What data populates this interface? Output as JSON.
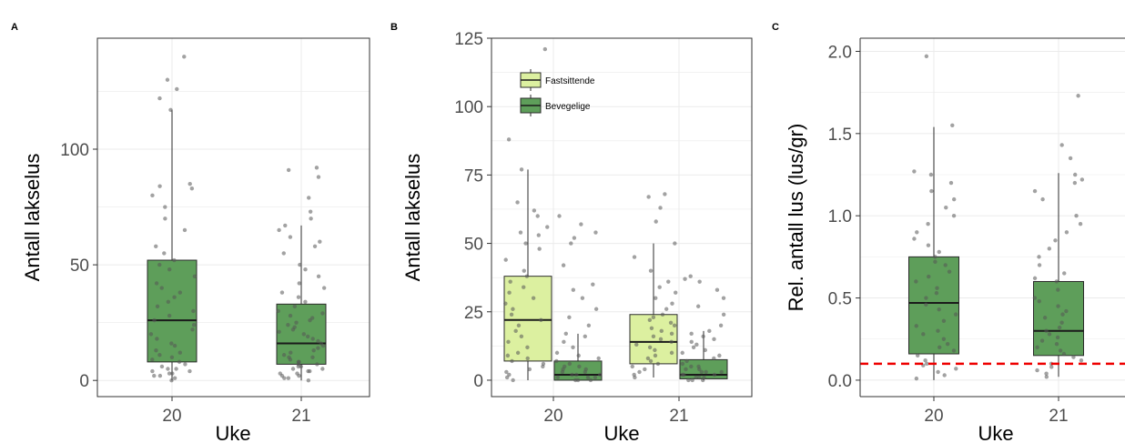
{
  "colors": {
    "fastsittende": "#dcf0a0",
    "bevegelige": "#5e9e5a",
    "box_stroke": "#2b2b2b",
    "median": "#1a1a1a",
    "grid": "#ebebeb",
    "points": "#555555",
    "threshold": "#ee0000"
  },
  "chart_data": [
    {
      "type": "box",
      "panel": "A",
      "xlabel": "Uke",
      "ylabel": "Antall lakselus",
      "ylim": [
        -7,
        148
      ],
      "yticks": [
        0,
        50,
        100
      ],
      "categories": [
        "20",
        "21"
      ],
      "series": [
        {
          "boxes": [
            {
              "category": "20",
              "q1": 8,
              "median": 26,
              "q3": 52,
              "whisker_low": 0,
              "whisker_high": 117,
              "points": [
                0,
                1,
                2,
                2,
                3,
                3,
                4,
                4,
                5,
                5,
                6,
                7,
                8,
                9,
                10,
                11,
                12,
                13,
                15,
                16,
                18,
                20,
                22,
                24,
                26,
                28,
                30,
                32,
                34,
                36,
                38,
                40,
                42,
                45,
                48,
                50,
                52,
                55,
                58,
                65,
                70,
                75,
                80,
                83,
                84,
                85,
                117,
                122,
                126,
                130,
                140
              ]
            },
            {
              "category": "21",
              "q1": 7,
              "median": 16,
              "q3": 33,
              "whisker_low": 0,
              "whisker_high": 67,
              "points": [
                0,
                1,
                1,
                2,
                2,
                3,
                3,
                4,
                4,
                5,
                5,
                6,
                6,
                7,
                7,
                8,
                8,
                9,
                10,
                10,
                11,
                12,
                13,
                14,
                15,
                16,
                17,
                18,
                19,
                20,
                21,
                22,
                23,
                24,
                25,
                26,
                27,
                28,
                29,
                30,
                32,
                34,
                36,
                38,
                40,
                42,
                45,
                48,
                50,
                55,
                58,
                60,
                62,
                65,
                67,
                70,
                73,
                79,
                88,
                91,
                92
              ]
            }
          ]
        }
      ]
    },
    {
      "type": "box",
      "panel": "B",
      "xlabel": "Uke",
      "ylabel": "Antall lakselus",
      "ylim": [
        -6,
        125
      ],
      "yticks": [
        0,
        25,
        50,
        75,
        100,
        125
      ],
      "categories": [
        "20",
        "21"
      ],
      "legend": [
        "Fastsittende",
        "Bevegelige"
      ],
      "series": [
        {
          "name": "Fastsittende",
          "boxes": [
            {
              "category": "20",
              "q1": 7,
              "median": 22,
              "q3": 38,
              "whisker_low": 0,
              "whisker_high": 77,
              "points": [
                0,
                1,
                2,
                3,
                4,
                5,
                6,
                7,
                8,
                9,
                10,
                12,
                14,
                16,
                18,
                20,
                22,
                24,
                26,
                28,
                30,
                32,
                34,
                36,
                38,
                40,
                44,
                48,
                50,
                53,
                54,
                56,
                60,
                62,
                65,
                77,
                88,
                121
              ]
            },
            {
              "category": "21",
              "q1": 6,
              "median": 14,
              "q3": 24,
              "whisker_low": 1,
              "whisker_high": 50,
              "points": [
                1,
                2,
                3,
                4,
                5,
                6,
                7,
                8,
                9,
                10,
                11,
                12,
                13,
                14,
                15,
                16,
                17,
                18,
                19,
                20,
                21,
                22,
                23,
                24,
                26,
                28,
                30,
                32,
                34,
                36,
                40,
                45,
                50,
                58,
                63,
                67,
                68
              ]
            }
          ]
        },
        {
          "name": "Bevegelige",
          "boxes": [
            {
              "category": "20",
              "q1": 0,
              "median": 2,
              "q3": 7,
              "whisker_low": 0,
              "whisker_high": 17,
              "points": [
                0,
                0,
                0,
                1,
                1,
                1,
                2,
                2,
                2,
                3,
                3,
                4,
                4,
                5,
                5,
                6,
                7,
                8,
                9,
                10,
                12,
                14,
                16,
                17,
                20,
                23,
                26,
                30,
                33,
                35,
                42,
                50,
                52,
                54,
                57,
                60
              ]
            },
            {
              "category": "21",
              "q1": 0.5,
              "median": 2,
              "q3": 7.5,
              "whisker_low": 0,
              "whisker_high": 18,
              "points": [
                0,
                0,
                0,
                1,
                1,
                1,
                2,
                2,
                2,
                3,
                3,
                3,
                4,
                4,
                5,
                5,
                6,
                7,
                8,
                9,
                10,
                11,
                12,
                13,
                14,
                15,
                16,
                17,
                18,
                20,
                24,
                27,
                30,
                33,
                36,
                37,
                38
              ]
            }
          ]
        }
      ]
    },
    {
      "type": "box",
      "panel": "C",
      "xlabel": "Uke",
      "ylabel": "Rel. antall lus (lus/gr)",
      "ylim": [
        -0.1,
        2.08
      ],
      "yticks": [
        0.0,
        0.5,
        1.0,
        1.5,
        2.0
      ],
      "ytick_labels": [
        "0.0",
        "0.5",
        "1.0",
        "1.5",
        "2.0"
      ],
      "categories": [
        "20",
        "21"
      ],
      "reference_line": {
        "y": 0.1,
        "style": "dashed"
      },
      "series": [
        {
          "boxes": [
            {
              "category": "20",
              "q1": 0.16,
              "median": 0.47,
              "q3": 0.75,
              "whisker_low": 0.0,
              "whisker_high": 1.54,
              "points": [
                0.01,
                0.03,
                0.05,
                0.07,
                0.09,
                0.1,
                0.12,
                0.15,
                0.18,
                0.2,
                0.22,
                0.25,
                0.28,
                0.3,
                0.33,
                0.36,
                0.4,
                0.43,
                0.46,
                0.5,
                0.53,
                0.56,
                0.6,
                0.63,
                0.66,
                0.7,
                0.72,
                0.75,
                0.78,
                0.82,
                0.86,
                0.9,
                0.95,
                1.0,
                1.05,
                1.1,
                1.15,
                1.2,
                1.25,
                1.27,
                1.55,
                1.97
              ]
            },
            {
              "category": "21",
              "q1": 0.15,
              "median": 0.3,
              "q3": 0.6,
              "whisker_low": 0.02,
              "whisker_high": 1.26,
              "points": [
                0.02,
                0.04,
                0.06,
                0.08,
                0.1,
                0.12,
                0.14,
                0.16,
                0.18,
                0.2,
                0.22,
                0.24,
                0.26,
                0.28,
                0.3,
                0.32,
                0.35,
                0.38,
                0.4,
                0.42,
                0.45,
                0.48,
                0.5,
                0.55,
                0.6,
                0.62,
                0.65,
                0.7,
                0.75,
                0.8,
                0.85,
                0.9,
                0.95,
                1.0,
                1.1,
                1.15,
                1.2,
                1.22,
                1.25,
                1.35,
                1.43,
                1.73
              ]
            }
          ]
        }
      ]
    }
  ]
}
